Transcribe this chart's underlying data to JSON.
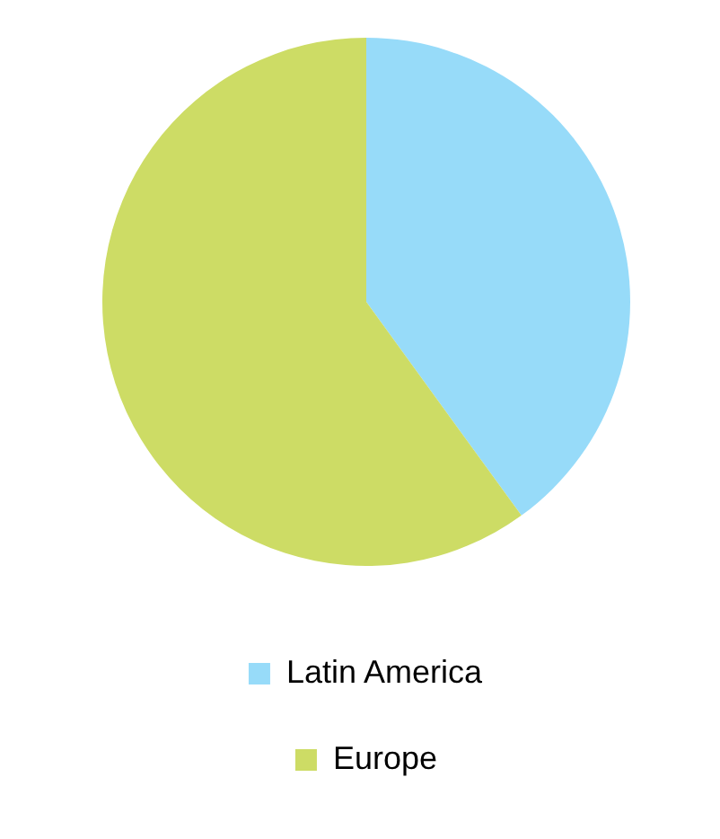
{
  "chart_data": {
    "type": "pie",
    "categories": [
      "Latin America",
      "Europe"
    ],
    "values": [
      40,
      60
    ],
    "colors": [
      "#97dbf9",
      "#cddc65"
    ],
    "legend": "bottom"
  }
}
